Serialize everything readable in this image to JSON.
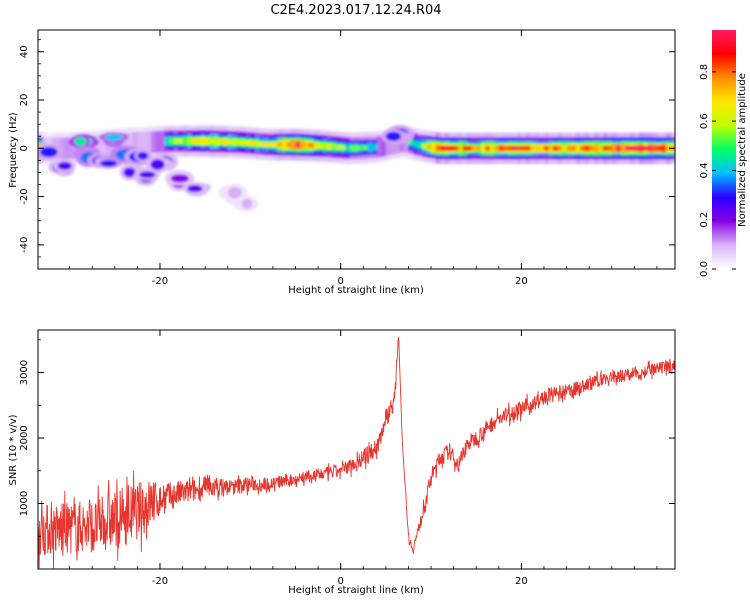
{
  "title": "C2E4.2023.017.12.24.R04",
  "chart_data": [
    {
      "type": "heatmap",
      "xlabel": "Height of straight line (km)",
      "ylabel": "Frequency (Hz)",
      "xlim": [
        -33.5,
        37
      ],
      "ylim": [
        -50,
        49
      ],
      "xticks": [
        -20,
        0,
        20
      ],
      "yticks": [
        -40,
        -20,
        0,
        20,
        40
      ],
      "colorbar": {
        "label": "Normalized spectral amplitude",
        "range": [
          0.0,
          0.97
        ],
        "ticks": [
          "0.0",
          "0.2",
          "0.4",
          "0.6",
          "0.8"
        ],
        "tick_values": [
          0.0,
          0.2,
          0.4,
          0.6,
          0.8
        ],
        "colors": [
          "#ffffff",
          "#d8b4f8",
          "#8a00e6",
          "#2a00ff",
          "#00bfff",
          "#00ff66",
          "#bfff00",
          "#ffe600",
          "#ff8c00",
          "#ff0000",
          "#ff1a66"
        ]
      },
      "ridge": [
        {
          "x": -33,
          "freq": 0,
          "amp": 0.25
        },
        {
          "x": -30,
          "freq": 0,
          "amp": 0.35
        },
        {
          "x": -27,
          "freq": 1,
          "amp": 0.3
        },
        {
          "x": -24,
          "freq": 2,
          "amp": 0.3
        },
        {
          "x": -21,
          "freq": 2.5,
          "amp": 0.35
        },
        {
          "x": -19,
          "freq": 3,
          "amp": 0.5
        },
        {
          "x": -15,
          "freq": 3,
          "amp": 0.7
        },
        {
          "x": -11,
          "freq": 2.5,
          "amp": 0.6
        },
        {
          "x": -8,
          "freq": 1.5,
          "amp": 0.6
        },
        {
          "x": -5,
          "freq": 1.5,
          "amp": 0.9
        },
        {
          "x": -2,
          "freq": 1,
          "amp": 0.65
        },
        {
          "x": 1,
          "freq": 0,
          "amp": 0.5
        },
        {
          "x": 4,
          "freq": 0.5,
          "amp": 0.45
        },
        {
          "x": 7,
          "freq": 3,
          "amp": 0.4
        },
        {
          "x": 9,
          "freq": 1,
          "amp": 0.55
        },
        {
          "x": 11,
          "freq": 0,
          "amp": 0.9
        },
        {
          "x": 15,
          "freq": 0,
          "amp": 0.7
        },
        {
          "x": 19,
          "freq": 0,
          "amp": 0.85
        },
        {
          "x": 23,
          "freq": 0,
          "amp": 0.75
        },
        {
          "x": 28,
          "freq": 0,
          "amp": 0.8
        },
        {
          "x": 33,
          "freq": 0,
          "amp": 0.9
        },
        {
          "x": 37,
          "freq": 0,
          "amp": 0.85
        }
      ],
      "scatter_blobs": [
        {
          "x": -32,
          "freq": -2,
          "amp": 0.3
        },
        {
          "x": -31,
          "freq": -8,
          "amp": 0.25
        },
        {
          "x": -29,
          "freq": 2,
          "amp": 0.45
        },
        {
          "x": -28,
          "freq": -3,
          "amp": 0.35
        },
        {
          "x": -26,
          "freq": -6,
          "amp": 0.3
        },
        {
          "x": -25,
          "freq": 4,
          "amp": 0.4
        },
        {
          "x": -24,
          "freq": -2,
          "amp": 0.35
        },
        {
          "x": -23,
          "freq": -9,
          "amp": 0.25
        },
        {
          "x": -22,
          "freq": -4,
          "amp": 0.3
        },
        {
          "x": -21,
          "freq": -11,
          "amp": 0.25
        },
        {
          "x": -20,
          "freq": -6,
          "amp": 0.25
        },
        {
          "x": -18,
          "freq": -13,
          "amp": 0.2
        },
        {
          "x": -16,
          "freq": -16,
          "amp": 0.25
        },
        {
          "x": -12,
          "freq": -19,
          "amp": 0.1
        },
        {
          "x": -10,
          "freq": -22,
          "amp": 0.1
        },
        {
          "x": 6,
          "freq": 5,
          "amp": 0.3
        }
      ]
    },
    {
      "type": "line",
      "xlabel": "Height of straight line (km)",
      "ylabel": "SNR (10 * v/v)",
      "xlim": [
        -33.5,
        37
      ],
      "ylim": [
        0,
        3650
      ],
      "xticks": [
        -20,
        0,
        20
      ],
      "yticks": [
        1000,
        2000,
        3000
      ],
      "series": [
        {
          "color": "#e8342c",
          "x": [
            -33.5,
            -31,
            -29,
            -27,
            -25,
            -23,
            -21,
            -20,
            -18,
            -16,
            -14,
            -12,
            -10,
            -8,
            -6,
            -4,
            -2,
            0,
            2,
            4,
            5,
            6,
            6.4,
            6.8,
            7.5,
            8,
            9,
            10,
            11,
            12,
            13,
            14,
            15,
            17,
            19,
            21,
            23,
            25,
            27,
            29,
            31,
            33,
            35,
            37
          ],
          "y": [
            600,
            600,
            650,
            650,
            750,
            850,
            1000,
            1050,
            1150,
            1200,
            1250,
            1250,
            1300,
            1300,
            1350,
            1400,
            1450,
            1500,
            1650,
            1850,
            2300,
            2600,
            3600,
            2000,
            500,
            300,
            800,
            1400,
            1700,
            1800,
            1600,
            1900,
            2000,
            2250,
            2400,
            2500,
            2650,
            2700,
            2800,
            2900,
            2950,
            3000,
            3050,
            3100
          ],
          "noise_amplitude": [
            800,
            800,
            800,
            800,
            900,
            900,
            800,
            500,
            400,
            350,
            300,
            250,
            250,
            200,
            200,
            200,
            200,
            200,
            250,
            300,
            300,
            300,
            0,
            0,
            150,
            150,
            200,
            250,
            250,
            250,
            250,
            250,
            250,
            250,
            250,
            250,
            250,
            250,
            200,
            200,
            200,
            200,
            200,
            200
          ]
        }
      ]
    }
  ]
}
